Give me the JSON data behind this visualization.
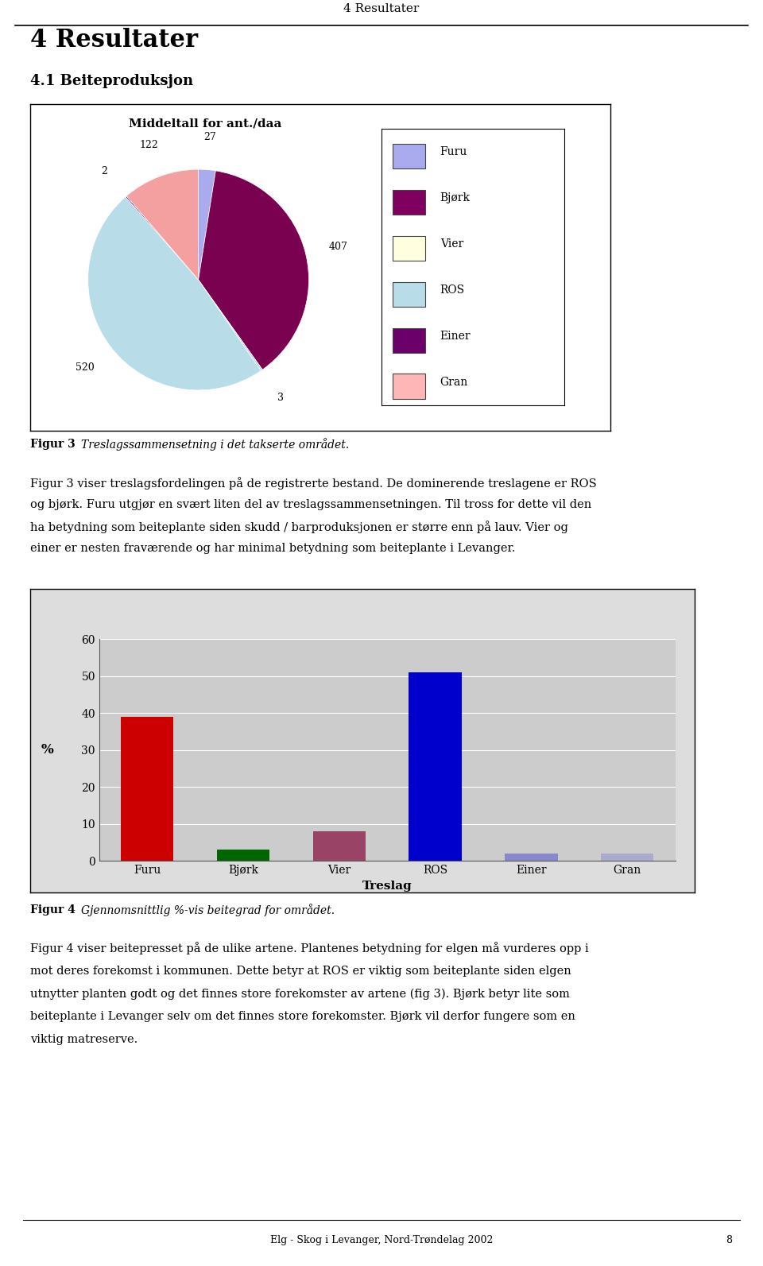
{
  "page_title": "4 Resultater",
  "section_title": "4 Resultater",
  "subsection_title": "4.1 Beiteproduksjon",
  "pie_title": "Middeltall for ant./daa",
  "pie_values": [
    27,
    407,
    3,
    520,
    2,
    122
  ],
  "pie_value_labels": [
    "27",
    "407",
    "3",
    "520",
    "2",
    "122"
  ],
  "pie_colors": [
    "#800060",
    "#6b006b",
    "#add8e6",
    "#b8dce8",
    "#dda0dd",
    "#ffb6c1"
  ],
  "pie_legend_labels": [
    "Furu",
    "Bjørk",
    "Vier",
    "ROS",
    "Einer",
    "Gran"
  ],
  "pie_legend_colors": [
    "#aaaaee",
    "#800060",
    "#ffffe0",
    "#b8dce8",
    "#6b006b",
    "#ffb6b6"
  ],
  "figur3_bold": "Figur 3",
  "figur3_italic": "Treslagssammensetning i det takserte området.",
  "para1_line1": "Figur 3 viser treslagsfordelingen på de registrerte bestand. De dominerende treslagene er ROS",
  "para1_line2": "og bjørk. Furu utgjør en svært liten del av treslagssammensetningen. Til tross for dette vil den",
  "para1_line3": "ha betydning som beiteplante siden skudd / barproduksjonen er større enn på lauv. Vier og",
  "para1_line4": "einer er nesten fraværende og har minimal betydning som beiteplante i Levanger.",
  "bar_categories": [
    "Furu",
    "Bjørk",
    "Vier",
    "ROS",
    "Einer",
    "Gran"
  ],
  "bar_values": [
    39,
    3,
    8,
    51,
    2,
    2
  ],
  "bar_colors": [
    "#cc0000",
    "#006600",
    "#994466",
    "#0000cc",
    "#8888cc",
    "#aaaacc"
  ],
  "bar_ylabel": "%",
  "bar_xlabel": "Treslag",
  "bar_ylim": [
    0,
    60
  ],
  "bar_yticks": [
    0,
    10,
    20,
    30,
    40,
    50,
    60
  ],
  "figur4_bold": "Figur 4",
  "figur4_italic": "Gjennomsnittlig %-vis beitegrad for området.",
  "para2_line1": "Figur 4 viser beitepresset på de ulike artene. Plantenes betydning for elgen må vurderes opp i",
  "para2_line2": "mot deres forekomst i kommunen. Dette betyr at ROS er viktig som beiteplante siden elgen",
  "para2_line3": "utnytter planten godt og det finnes store forekomster av artene (fig 3). Bjørk betyr lite som",
  "para2_line4": "beiteplante i Levanger selv om det finnes store forekomster. Bjørk vil derfor fungere som en",
  "para2_line5": "viktig matreserve.",
  "footer_center": "Elg - Skog i Levanger, Nord-Trøndelag 2002",
  "footer_page": "8",
  "bg_color": "#ffffff"
}
